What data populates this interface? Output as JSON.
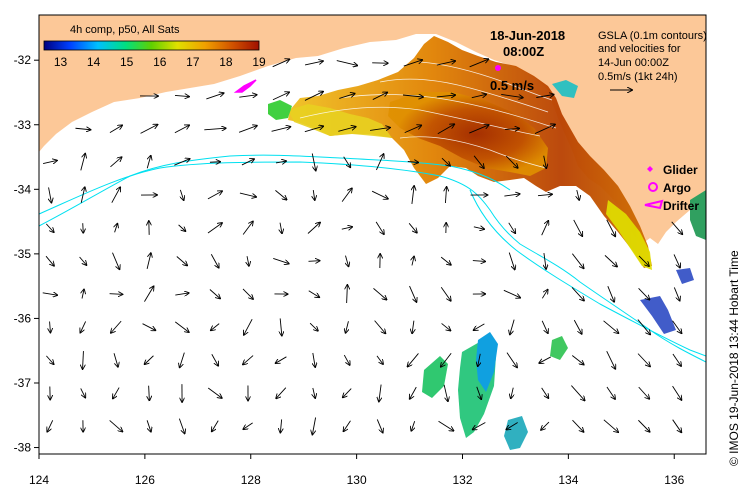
{
  "map": {
    "colorbar": {
      "title": "4h comp, p50, All Sats",
      "ticks": [
        "13",
        "14",
        "15",
        "16",
        "17",
        "18",
        "19"
      ],
      "min": 12.5,
      "max": 19
    },
    "timestamp": {
      "date": "18-Jun-2018",
      "time": "08:00Z"
    },
    "gsla_note": {
      "line1": "GSLA (0.1m contours)",
      "line2": "and velocities for",
      "line3": "14-Jun 00:00Z",
      "line4": "0.5m/s (1kt 24h)"
    },
    "scale_arrow_label": "0.5 m/s",
    "legend": {
      "glider": "Glider",
      "argo": "Argo",
      "drifter": "Drifter"
    },
    "credit": "© IMOS 19-Jun-2018 13:44 Hobart Time",
    "lon_ticks": [
      "124",
      "126",
      "128",
      "130",
      "132",
      "134",
      "136"
    ],
    "lat_ticks": [
      "-32",
      "-33",
      "-34",
      "-35",
      "-36",
      "-37",
      "-38"
    ],
    "colors": {
      "land": "#fcc898",
      "cold": "#000080",
      "warm": "#a02000",
      "contour": "#00e8f0",
      "magenta": "#ff00ff"
    }
  }
}
